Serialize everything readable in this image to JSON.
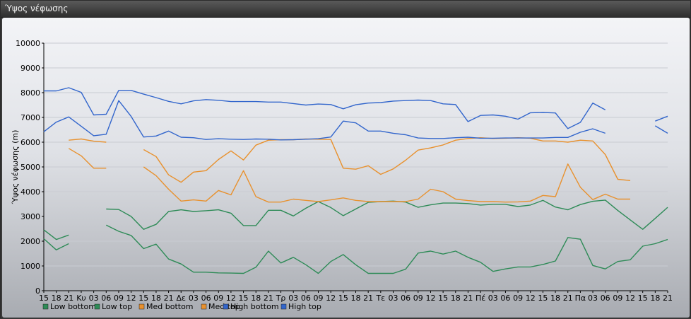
{
  "window": {
    "title": "Ύψος νέφωσης"
  },
  "chart_data": {
    "type": "line",
    "title": "",
    "ylabel": "Ύψος νέφωσης (m)",
    "xlabel": "",
    "ylim": [
      0,
      10000
    ],
    "yticks": [
      0,
      1000,
      2000,
      3000,
      4000,
      5000,
      6000,
      7000,
      8000,
      9000,
      10000
    ],
    "grid": true,
    "legend_position": "bottom-left",
    "categories": [
      "15",
      "18",
      "21",
      "Κυ",
      "03",
      "06",
      "09",
      "12",
      "15",
      "18",
      "21",
      "Δε",
      "03",
      "06",
      "09",
      "12",
      "15",
      "18",
      "21",
      "Τρ",
      "03",
      "06",
      "09",
      "12",
      "15",
      "18",
      "21",
      "Τε",
      "03",
      "06",
      "09",
      "12",
      "15",
      "18",
      "21",
      "Πέ",
      "03",
      "06",
      "09",
      "12",
      "15",
      "18",
      "21",
      "Πα",
      "03",
      "06",
      "09",
      "12",
      "15",
      "18",
      "21"
    ],
    "series": [
      {
        "name": "Low bottom",
        "color": "#2e8b57",
        "values": [
          2100,
          1650,
          1900,
          null,
          null,
          2650,
          2400,
          2230,
          1700,
          1880,
          1280,
          1080,
          750,
          750,
          720,
          710,
          700,
          950,
          1600,
          1120,
          1350,
          1050,
          700,
          1180,
          1460,
          1050,
          700,
          700,
          700,
          870,
          1520,
          1600,
          1480,
          1600,
          1350,
          1150,
          780,
          880,
          960,
          960,
          1060,
          1200,
          2150,
          2080,
          1020,
          880,
          1180,
          1250,
          1800,
          1900,
          2070
        ]
      },
      {
        "name": "Low top",
        "color": "#2e8b57",
        "values": [
          2460,
          2070,
          2250,
          null,
          null,
          3300,
          3280,
          3000,
          2480,
          2680,
          3200,
          3270,
          3200,
          3230,
          3270,
          3130,
          2630,
          2630,
          3250,
          3250,
          3020,
          3330,
          3600,
          3360,
          3030,
          3300,
          3570,
          3600,
          3620,
          3580,
          3370,
          3470,
          3540,
          3540,
          3520,
          3460,
          3490,
          3490,
          3400,
          3460,
          3650,
          3380,
          3270,
          3480,
          3610,
          3660,
          3240,
          2860,
          2480,
          2920,
          3370
        ]
      },
      {
        "name": "Med bottom",
        "color": "#e8912e",
        "values": [
          null,
          null,
          5750,
          5450,
          4950,
          4950,
          null,
          null,
          5000,
          4650,
          4100,
          3620,
          3670,
          3620,
          4050,
          3870,
          4850,
          3800,
          3580,
          3580,
          3700,
          3650,
          3600,
          3670,
          3750,
          3650,
          3600,
          3600,
          3600,
          3600,
          3700,
          4100,
          4000,
          3700,
          3640,
          3600,
          3600,
          3580,
          3590,
          3620,
          3850,
          3800,
          5120,
          4180,
          3680,
          3900,
          3700,
          3700,
          null,
          null,
          null
        ]
      },
      {
        "name": "Med top",
        "color": "#e8912e",
        "values": [
          null,
          null,
          6080,
          6130,
          6040,
          6000,
          null,
          null,
          5700,
          5420,
          4680,
          4380,
          4790,
          4850,
          5300,
          5650,
          5280,
          5880,
          6080,
          6100,
          6100,
          6130,
          6120,
          6110,
          4950,
          4910,
          5050,
          4700,
          4920,
          5270,
          5680,
          5770,
          5890,
          6080,
          6150,
          6180,
          6150,
          6160,
          6180,
          6160,
          6050,
          6050,
          6000,
          6080,
          6050,
          5500,
          4500,
          4450,
          null,
          null,
          null
        ]
      },
      {
        "name": "High bottom",
        "color": "#3366cc",
        "values": [
          6420,
          6810,
          7020,
          6640,
          6260,
          6320,
          7680,
          7040,
          6210,
          6250,
          6450,
          6200,
          6180,
          6110,
          6140,
          6120,
          6110,
          6130,
          6120,
          6090,
          6100,
          6120,
          6140,
          6210,
          6850,
          6780,
          6450,
          6450,
          6360,
          6300,
          6170,
          6150,
          6150,
          6180,
          6200,
          6160,
          6160,
          6170,
          6170,
          6170,
          6170,
          6190,
          6190,
          6400,
          6540,
          6360,
          null,
          null,
          null,
          6660,
          6360
        ]
      },
      {
        "name": "High top",
        "color": "#3366cc",
        "values": [
          8070,
          8070,
          8200,
          8010,
          7100,
          7130,
          8090,
          8090,
          7940,
          7800,
          7650,
          7550,
          7670,
          7720,
          7690,
          7640,
          7640,
          7640,
          7620,
          7620,
          7560,
          7500,
          7540,
          7520,
          7350,
          7510,
          7580,
          7600,
          7660,
          7680,
          7700,
          7680,
          7550,
          7520,
          6830,
          7080,
          7100,
          7050,
          6930,
          7190,
          7200,
          7180,
          6550,
          6800,
          7580,
          7310,
          null,
          null,
          null,
          6850,
          7050
        ]
      }
    ]
  }
}
